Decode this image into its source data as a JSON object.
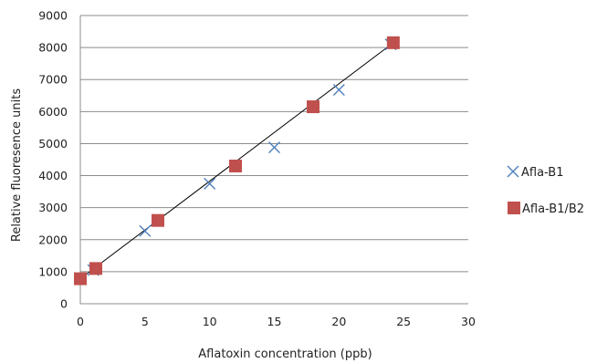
{
  "chart_data": {
    "type": "scatter",
    "title": "",
    "xlabel": "Aflatoxin concentration (ppb)",
    "ylabel": "Relative fluoresence units",
    "xlim": [
      0,
      30
    ],
    "ylim": [
      0,
      9000
    ],
    "x_ticks": [
      0,
      5,
      10,
      15,
      20,
      25,
      30
    ],
    "y_ticks": [
      0,
      1000,
      2000,
      3000,
      4000,
      5000,
      6000,
      7000,
      8000,
      9000
    ],
    "grid": "horizontal",
    "legend_position": "right",
    "series": [
      {
        "name": "Afla-B1",
        "marker": "x",
        "color": "#4f81bd",
        "points": [
          [
            0,
            800
          ],
          [
            1,
            1050
          ],
          [
            5,
            2270
          ],
          [
            10,
            3750
          ],
          [
            15,
            4880
          ],
          [
            20,
            6680
          ],
          [
            24,
            8100
          ]
        ]
      },
      {
        "name": "Afla-B1/B2",
        "marker": "square",
        "color": "#c0504d",
        "points": [
          [
            0,
            780
          ],
          [
            1.2,
            1100
          ],
          [
            6,
            2600
          ],
          [
            12,
            4300
          ],
          [
            18,
            6150
          ],
          [
            24.2,
            8150
          ]
        ]
      }
    ],
    "trendline": {
      "color": "#000000",
      "from": [
        0,
        780
      ],
      "to": [
        24.2,
        8150
      ]
    }
  }
}
